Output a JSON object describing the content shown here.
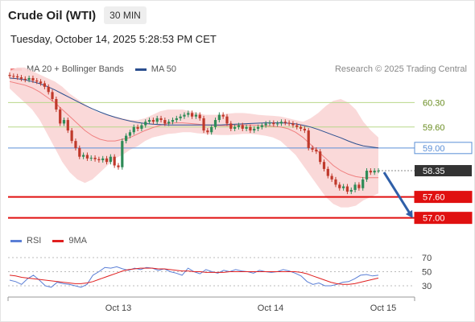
{
  "header": {
    "title": "Crude Oil (WTI)",
    "timeframe": "30 MIN",
    "timestamp": "Tuesday, October 14, 2025 5:28:53 PM CET"
  },
  "legend_main": [
    {
      "label": "MA 20 + Bollinger Bands",
      "color": "#f08080"
    },
    {
      "label": "MA 50",
      "color": "#2b4f8f"
    }
  ],
  "credit": "Research © 2025 Trading Central",
  "legend_rsi": [
    {
      "label": "RSI",
      "color": "#5b7fd6"
    },
    {
      "label": "9MA",
      "color": "#e02020"
    }
  ],
  "colors": {
    "resistance": "#b8d88a",
    "pivot": "#5b8fd6",
    "support": "#e01010",
    "current": "#333333",
    "arrow": "#2f5fa8",
    "bull": "#2e8b57",
    "bear": "#c0392b",
    "bollinger": "#f9d5d5",
    "ma50": "#2b4f8f"
  },
  "chart_data": {
    "type": "candlestick",
    "x_ticks": [
      "Oct 13",
      "Oct 14",
      "Oct 15"
    ],
    "ylim": [
      56.9,
      60.7
    ],
    "levels": [
      {
        "value": 60.3,
        "label": "60.30",
        "kind": "resistance"
      },
      {
        "value": 59.6,
        "label": "59.60",
        "kind": "resistance"
      },
      {
        "value": 59.0,
        "label": "59.00",
        "kind": "pivot"
      },
      {
        "value": 58.35,
        "label": "58.35",
        "kind": "current"
      },
      {
        "value": 57.6,
        "label": "57.60",
        "kind": "support"
      },
      {
        "value": 57.0,
        "label": "57.00",
        "kind": "support"
      }
    ],
    "close": [
      61.06,
      61.05,
      61.02,
      60.98,
      60.95,
      61.0,
      60.93,
      60.9,
      60.85,
      60.75,
      60.6,
      60.4,
      60.1,
      59.7,
      59.8,
      59.5,
      59.2,
      59.0,
      58.75,
      58.8,
      58.7,
      58.72,
      58.68,
      58.65,
      58.7,
      58.6,
      58.75,
      58.5,
      58.45,
      59.2,
      59.35,
      59.45,
      59.6,
      59.55,
      59.65,
      59.75,
      59.8,
      59.75,
      59.85,
      59.8,
      59.7,
      59.75,
      59.8,
      59.85,
      59.9,
      59.95,
      60.0,
      59.9,
      59.95,
      59.85,
      59.5,
      59.45,
      59.6,
      59.8,
      59.95,
      59.9,
      59.7,
      59.55,
      59.6,
      59.65,
      59.55,
      59.6,
      59.5,
      59.55,
      59.6,
      59.65,
      59.7,
      59.72,
      59.68,
      59.7,
      59.75,
      59.72,
      59.7,
      59.65,
      59.6,
      59.55,
      59.5,
      59.0,
      58.95,
      58.9,
      58.6,
      58.4,
      58.2,
      58.1,
      57.95,
      57.85,
      57.9,
      57.75,
      57.8,
      57.95,
      57.85,
      58.1,
      58.35,
      58.3,
      58.35,
      58.35
    ],
    "ma20": [
      60.9,
      60.85,
      60.8,
      60.72,
      60.6,
      60.45,
      60.3,
      60.1,
      59.9,
      59.7,
      59.5,
      59.35,
      59.25,
      59.2,
      59.2,
      59.25,
      59.3,
      59.4,
      59.5,
      59.58,
      59.65,
      59.7,
      59.72,
      59.72,
      59.7,
      59.68,
      59.66,
      59.65,
      59.64,
      59.64,
      59.65,
      59.66,
      59.66,
      59.65,
      59.63,
      59.62,
      59.6,
      59.55,
      59.45,
      59.3,
      59.1,
      58.9,
      58.7,
      58.5,
      58.35,
      58.25,
      58.18,
      58.15,
      58.15,
      58.15
    ],
    "ma50": [
      61.0,
      60.98,
      60.95,
      60.9,
      60.84,
      60.76,
      60.66,
      60.55,
      60.44,
      60.33,
      60.22,
      60.12,
      60.03,
      59.95,
      59.88,
      59.82,
      59.77,
      59.73,
      59.7,
      59.68,
      59.67,
      59.66,
      59.66,
      59.66,
      59.66,
      59.66,
      59.66,
      59.66,
      59.66,
      59.67,
      59.68,
      59.69,
      59.7,
      59.71,
      59.72,
      59.72,
      59.72,
      59.71,
      59.69,
      59.65,
      59.6,
      59.53,
      59.45,
      59.37,
      59.29,
      59.2,
      59.12,
      59.06,
      59.03,
      59.0
    ],
    "bb_upper": [
      61.2,
      61.3,
      61.3,
      61.2,
      61.1,
      61.0,
      60.9,
      60.75,
      60.55,
      60.4,
      60.25,
      60.1,
      60.0,
      59.95,
      59.9,
      59.85,
      59.8,
      59.8,
      59.85,
      59.95,
      60.05,
      60.1,
      60.1,
      60.1,
      60.05,
      60.0,
      59.95,
      59.95,
      59.95,
      59.98,
      60.0,
      60.0,
      59.98,
      59.95,
      59.93,
      59.92,
      59.9,
      59.85,
      59.8,
      59.75,
      59.85,
      60.0,
      60.2,
      60.35,
      60.4,
      60.3,
      60.1,
      59.75,
      59.5,
      59.3
    ],
    "bb_lower": [
      60.7,
      60.5,
      60.3,
      60.1,
      59.8,
      59.4,
      59.0,
      58.6,
      58.3,
      58.1,
      58.0,
      58.1,
      58.3,
      58.5,
      58.7,
      58.8,
      58.95,
      59.05,
      59.2,
      59.3,
      59.35,
      59.4,
      59.42,
      59.45,
      59.45,
      59.42,
      59.4,
      59.38,
      59.37,
      59.37,
      59.38,
      59.4,
      59.4,
      59.38,
      59.35,
      59.3,
      59.2,
      59.0,
      58.8,
      58.5,
      58.2,
      57.9,
      57.6,
      57.4,
      57.3,
      57.3,
      57.35,
      57.5,
      57.6,
      57.7
    ],
    "rsi": {
      "ylim": [
        0,
        100
      ],
      "ticks": [
        "70",
        "50",
        "30"
      ],
      "rsi": [
        38,
        36,
        32,
        40,
        45,
        38,
        30,
        28,
        35,
        33,
        32,
        30,
        28,
        32,
        45,
        50,
        56,
        55,
        57,
        54,
        52,
        55,
        53,
        56,
        55,
        52,
        54,
        50,
        48,
        45,
        55,
        50,
        47,
        53,
        50,
        48,
        52,
        50,
        53,
        51,
        50,
        48,
        52,
        50,
        49,
        50,
        53,
        51,
        48,
        44,
        36,
        32,
        34,
        30,
        30,
        32,
        35,
        36,
        40,
        45,
        46,
        44,
        45
      ],
      "ma9": [
        45,
        44,
        42,
        41,
        40,
        39,
        38,
        37,
        36,
        35,
        34,
        33,
        33,
        34,
        36,
        39,
        42,
        45,
        48,
        51,
        53,
        54,
        55,
        55,
        55,
        54,
        54,
        53,
        52,
        51,
        51,
        50,
        50,
        49,
        49,
        49,
        49,
        50,
        50,
        50,
        50,
        50,
        50,
        50,
        50,
        50,
        50,
        50,
        50,
        49,
        47,
        44,
        41,
        38,
        35,
        33,
        32,
        32,
        33,
        35,
        37,
        39,
        41
      ]
    },
    "projection": {
      "from": 58.35,
      "to": 57.0
    }
  }
}
